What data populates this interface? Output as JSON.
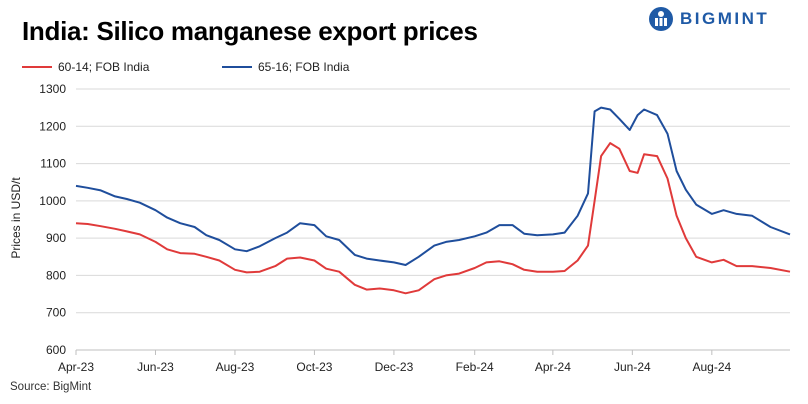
{
  "header": {
    "title": "India: Silico manganese export prices",
    "logo_text": "BIGMINT"
  },
  "footer": {
    "source": "Source: BigMint"
  },
  "colors": {
    "series_red": "#e03a3a",
    "series_blue": "#1f4e9c",
    "brand": "#1f5aa6"
  },
  "chart_data": {
    "type": "line",
    "title": "India: Silico manganese export prices",
    "ylabel": "Prices in USD/t",
    "xlabel": "",
    "ylim": [
      600,
      1300
    ],
    "yticks": [
      600,
      700,
      800,
      900,
      1000,
      1100,
      1200,
      1300
    ],
    "xlim": [
      "2023-04-01",
      "2024-09-30"
    ],
    "xticks": [
      {
        "label": "Apr-23",
        "date": "2023-04-01"
      },
      {
        "label": "Jun-23",
        "date": "2023-06-01"
      },
      {
        "label": "Aug-23",
        "date": "2023-08-01"
      },
      {
        "label": "Oct-23",
        "date": "2023-10-01"
      },
      {
        "label": "Dec-23",
        "date": "2023-12-01"
      },
      {
        "label": "Feb-24",
        "date": "2024-02-01"
      },
      {
        "label": "Apr-24",
        "date": "2024-04-01"
      },
      {
        "label": "Jun-24",
        "date": "2024-06-01"
      },
      {
        "label": "Aug-24",
        "date": "2024-08-01"
      }
    ],
    "grid": "horizontal",
    "legend_position": "top-left",
    "series": [
      {
        "name": "60-14; FOB India",
        "color": "#e03a3a",
        "points": [
          [
            "2023-04-01",
            940
          ],
          [
            "2023-04-10",
            938
          ],
          [
            "2023-04-20",
            932
          ],
          [
            "2023-05-01",
            925
          ],
          [
            "2023-05-10",
            918
          ],
          [
            "2023-05-20",
            910
          ],
          [
            "2023-06-01",
            890
          ],
          [
            "2023-06-10",
            870
          ],
          [
            "2023-06-20",
            860
          ],
          [
            "2023-07-01",
            858
          ],
          [
            "2023-07-10",
            850
          ],
          [
            "2023-07-20",
            840
          ],
          [
            "2023-08-01",
            815
          ],
          [
            "2023-08-10",
            808
          ],
          [
            "2023-08-20",
            810
          ],
          [
            "2023-09-01",
            825
          ],
          [
            "2023-09-10",
            845
          ],
          [
            "2023-09-20",
            848
          ],
          [
            "2023-10-01",
            840
          ],
          [
            "2023-10-10",
            818
          ],
          [
            "2023-10-20",
            810
          ],
          [
            "2023-11-01",
            775
          ],
          [
            "2023-11-10",
            762
          ],
          [
            "2023-11-20",
            765
          ],
          [
            "2023-12-01",
            760
          ],
          [
            "2023-12-10",
            752
          ],
          [
            "2023-12-20",
            760
          ],
          [
            "2024-01-01",
            790
          ],
          [
            "2024-01-10",
            800
          ],
          [
            "2024-01-20",
            805
          ],
          [
            "2024-02-01",
            820
          ],
          [
            "2024-02-10",
            835
          ],
          [
            "2024-02-20",
            838
          ],
          [
            "2024-03-01",
            830
          ],
          [
            "2024-03-10",
            815
          ],
          [
            "2024-03-20",
            810
          ],
          [
            "2024-04-01",
            810
          ],
          [
            "2024-04-10",
            812
          ],
          [
            "2024-04-20",
            840
          ],
          [
            "2024-04-28",
            880
          ],
          [
            "2024-05-03",
            1000
          ],
          [
            "2024-05-08",
            1120
          ],
          [
            "2024-05-15",
            1155
          ],
          [
            "2024-05-22",
            1140
          ],
          [
            "2024-05-30",
            1080
          ],
          [
            "2024-06-05",
            1075
          ],
          [
            "2024-06-10",
            1125
          ],
          [
            "2024-06-20",
            1120
          ],
          [
            "2024-06-28",
            1060
          ],
          [
            "2024-07-05",
            960
          ],
          [
            "2024-07-12",
            900
          ],
          [
            "2024-07-20",
            850
          ],
          [
            "2024-08-01",
            835
          ],
          [
            "2024-08-10",
            842
          ],
          [
            "2024-08-20",
            825
          ],
          [
            "2024-09-01",
            825
          ],
          [
            "2024-09-15",
            820
          ],
          [
            "2024-09-30",
            810
          ]
        ]
      },
      {
        "name": "65-16; FOB India",
        "color": "#1f4e9c",
        "points": [
          [
            "2023-04-01",
            1040
          ],
          [
            "2023-04-10",
            1035
          ],
          [
            "2023-04-20",
            1028
          ],
          [
            "2023-05-01",
            1012
          ],
          [
            "2023-05-10",
            1005
          ],
          [
            "2023-05-20",
            995
          ],
          [
            "2023-06-01",
            975
          ],
          [
            "2023-06-10",
            955
          ],
          [
            "2023-06-20",
            940
          ],
          [
            "2023-07-01",
            930
          ],
          [
            "2023-07-10",
            908
          ],
          [
            "2023-07-20",
            895
          ],
          [
            "2023-08-01",
            870
          ],
          [
            "2023-08-10",
            865
          ],
          [
            "2023-08-20",
            878
          ],
          [
            "2023-09-01",
            900
          ],
          [
            "2023-09-10",
            915
          ],
          [
            "2023-09-20",
            940
          ],
          [
            "2023-10-01",
            935
          ],
          [
            "2023-10-10",
            905
          ],
          [
            "2023-10-20",
            895
          ],
          [
            "2023-11-01",
            855
          ],
          [
            "2023-11-10",
            845
          ],
          [
            "2023-11-20",
            840
          ],
          [
            "2023-12-01",
            835
          ],
          [
            "2023-12-10",
            828
          ],
          [
            "2023-12-20",
            850
          ],
          [
            "2024-01-01",
            880
          ],
          [
            "2024-01-10",
            890
          ],
          [
            "2024-01-20",
            895
          ],
          [
            "2024-02-01",
            905
          ],
          [
            "2024-02-10",
            915
          ],
          [
            "2024-02-20",
            935
          ],
          [
            "2024-03-01",
            935
          ],
          [
            "2024-03-10",
            912
          ],
          [
            "2024-03-20",
            908
          ],
          [
            "2024-04-01",
            910
          ],
          [
            "2024-04-10",
            915
          ],
          [
            "2024-04-20",
            960
          ],
          [
            "2024-04-28",
            1020
          ],
          [
            "2024-05-03",
            1240
          ],
          [
            "2024-05-08",
            1250
          ],
          [
            "2024-05-15",
            1245
          ],
          [
            "2024-05-22",
            1220
          ],
          [
            "2024-05-30",
            1190
          ],
          [
            "2024-06-05",
            1230
          ],
          [
            "2024-06-10",
            1245
          ],
          [
            "2024-06-20",
            1230
          ],
          [
            "2024-06-28",
            1180
          ],
          [
            "2024-07-05",
            1080
          ],
          [
            "2024-07-12",
            1030
          ],
          [
            "2024-07-20",
            990
          ],
          [
            "2024-08-01",
            965
          ],
          [
            "2024-08-10",
            975
          ],
          [
            "2024-08-20",
            965
          ],
          [
            "2024-09-01",
            960
          ],
          [
            "2024-09-15",
            930
          ],
          [
            "2024-09-30",
            910
          ]
        ]
      }
    ]
  }
}
